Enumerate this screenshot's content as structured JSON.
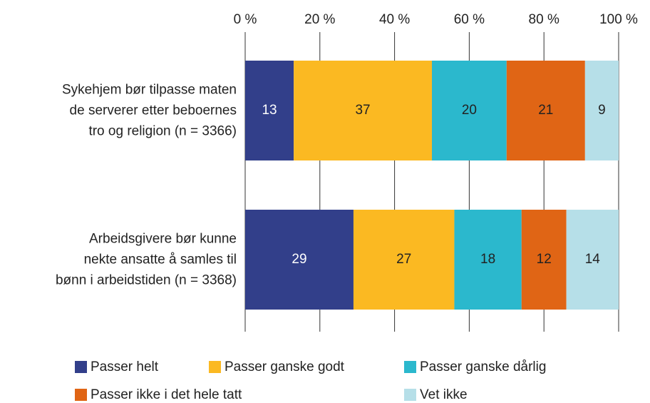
{
  "chart_data": {
    "type": "stacked-bar-horizontal",
    "categories": [
      "Sykehjem bør tilpasse maten\nde serverer etter beboernes\ntro og religion (n = 3366)",
      "Arbeidsgivere bør kunne\nnekte ansatte å samles til\nbønn i arbeidstiden (n = 3368)"
    ],
    "series": [
      {
        "name": "Passer helt",
        "color": "#323f8a",
        "label_color": "#ffffff",
        "values": [
          13,
          29
        ]
      },
      {
        "name": "Passer ganske godt",
        "color": "#fbb922",
        "label_color": "#222222",
        "values": [
          37,
          27
        ]
      },
      {
        "name": "Passer ganske dårlig",
        "color": "#2bb8cd",
        "label_color": "#222222",
        "values": [
          20,
          18
        ]
      },
      {
        "name": "Passer ikke i det hele tatt",
        "color": "#e06515",
        "label_color": "#222222",
        "values": [
          21,
          12
        ]
      },
      {
        "name": "Vet ikke",
        "color": "#b6dfe8",
        "label_color": "#222222",
        "values": [
          9,
          14
        ]
      }
    ],
    "xlim": [
      0,
      100
    ],
    "xticks": [
      {
        "value": 0,
        "label": "0 %"
      },
      {
        "value": 20,
        "label": "20 %"
      },
      {
        "value": 40,
        "label": "40 %"
      },
      {
        "value": 60,
        "label": "60 %"
      },
      {
        "value": 80,
        "label": "80 %"
      },
      {
        "value": 100,
        "label": "100 %"
      }
    ],
    "grid": true
  }
}
